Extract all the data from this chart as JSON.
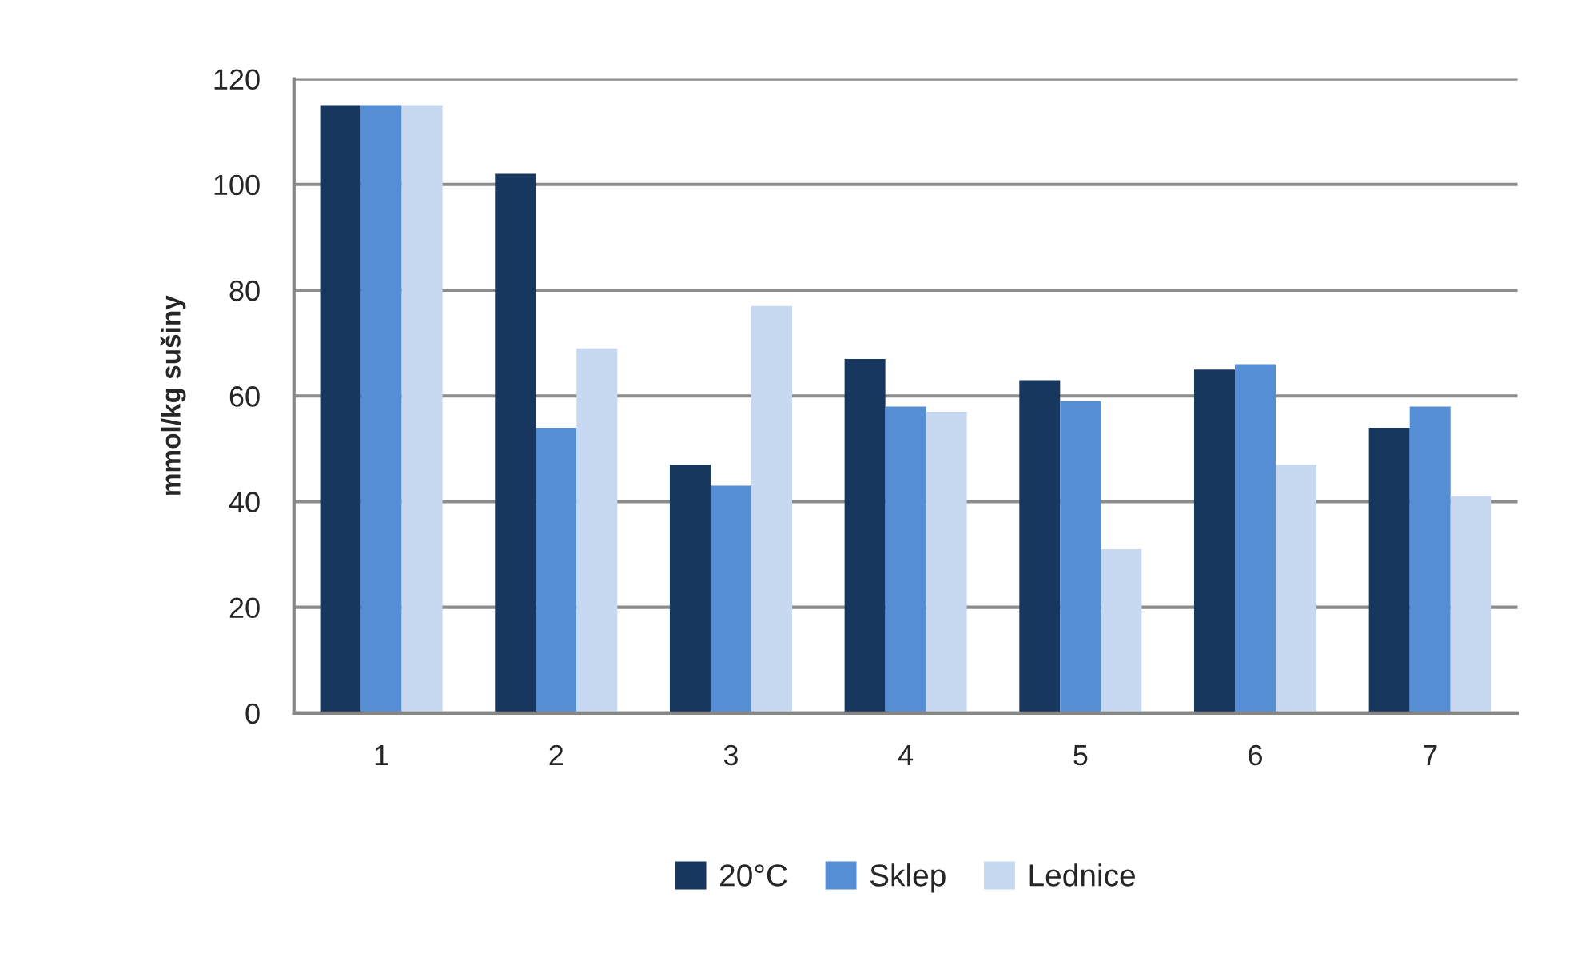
{
  "chart_data": {
    "type": "bar",
    "ylabel": "mmol/kg sušiny",
    "categories": [
      "1",
      "2",
      "3",
      "4",
      "5",
      "6",
      "7"
    ],
    "series": [
      {
        "name": "20°C",
        "color": "#17375e",
        "values": [
          115,
          102,
          47,
          67,
          63,
          65,
          54
        ]
      },
      {
        "name": "Sklep",
        "color": "#558ed5",
        "values": [
          115,
          54,
          43,
          58,
          59,
          66,
          58
        ]
      },
      {
        "name": "Lednice",
        "color": "#c6d9f1",
        "values": [
          115,
          69,
          77,
          57,
          31,
          47,
          41
        ]
      }
    ],
    "ylim": [
      0,
      120
    ],
    "yticks": [
      0,
      20,
      40,
      60,
      80,
      100,
      120
    ],
    "grid": "y",
    "legend": "bottom"
  }
}
